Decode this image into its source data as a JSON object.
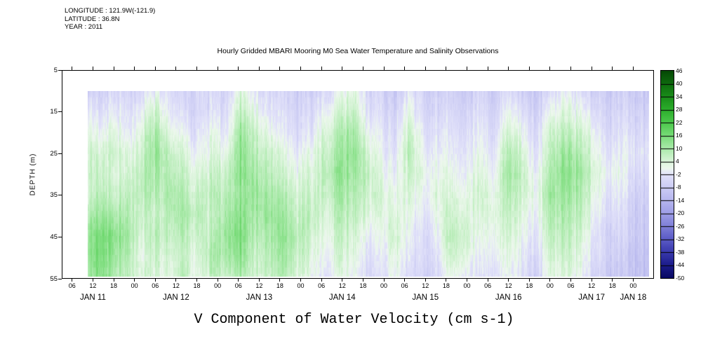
{
  "header": {
    "longitude": "LONGITUDE : 121.9W(-121.9)",
    "latitude": "LATITUDE : 36.8N",
    "year": "YEAR : 2011"
  },
  "title": "Hourly Gridded MBARI Mooring M0 Sea Water Temperature and Salinity Observations",
  "bottom_title": "V Component of Water Velocity (cm s-1)",
  "y_axis": {
    "label": "DEPTH (m)",
    "ticks": [
      5,
      15,
      25,
      35,
      45,
      55
    ],
    "range": [
      5,
      55
    ]
  },
  "x_axis": {
    "epoch": "2011-01-11 00:00",
    "hour_ticks": [
      {
        "hour": 6,
        "label": "06"
      },
      {
        "hour": 12,
        "label": "12"
      },
      {
        "hour": 18,
        "label": "18"
      },
      {
        "hour": 24,
        "label": "00"
      },
      {
        "hour": 30,
        "label": "06"
      },
      {
        "hour": 36,
        "label": "12"
      },
      {
        "hour": 42,
        "label": "18"
      },
      {
        "hour": 48,
        "label": "00"
      },
      {
        "hour": 54,
        "label": "06"
      },
      {
        "hour": 60,
        "label": "12"
      },
      {
        "hour": 66,
        "label": "18"
      },
      {
        "hour": 72,
        "label": "00"
      },
      {
        "hour": 78,
        "label": "06"
      },
      {
        "hour": 84,
        "label": "12"
      },
      {
        "hour": 90,
        "label": "18"
      },
      {
        "hour": 96,
        "label": "00"
      },
      {
        "hour": 102,
        "label": "06"
      },
      {
        "hour": 108,
        "label": "12"
      },
      {
        "hour": 114,
        "label": "18"
      },
      {
        "hour": 120,
        "label": "00"
      },
      {
        "hour": 126,
        "label": "06"
      },
      {
        "hour": 132,
        "label": "12"
      },
      {
        "hour": 138,
        "label": "18"
      },
      {
        "hour": 144,
        "label": "00"
      },
      {
        "hour": 150,
        "label": "06"
      },
      {
        "hour": 156,
        "label": "12"
      },
      {
        "hour": 162,
        "label": "18"
      },
      {
        "hour": 168,
        "label": "00"
      }
    ],
    "day_ticks": [
      {
        "hour": 12,
        "label": "JAN 11"
      },
      {
        "hour": 36,
        "label": "JAN 12"
      },
      {
        "hour": 60,
        "label": "JAN 13"
      },
      {
        "hour": 84,
        "label": "JAN 14"
      },
      {
        "hour": 108,
        "label": "JAN 15"
      },
      {
        "hour": 132,
        "label": "JAN 16"
      },
      {
        "hour": 156,
        "label": "JAN 17"
      },
      {
        "hour": 168,
        "label": "JAN 18"
      }
    ]
  },
  "chart_data": {
    "type": "heatmap",
    "title": "Hourly Gridded MBARI Mooring M0 Sea Water Temperature and Salinity Observations",
    "xlabel": "V Component of Water Velocity (cm s-1)",
    "ylabel": "DEPTH (m)",
    "units": "cm s-1",
    "value_range": [
      -50,
      46
    ],
    "x_range_hours": [
      3,
      174
    ],
    "data_x_range_hours": [
      10.5,
      172.5
    ],
    "depth_range": [
      5,
      55
    ],
    "grid_x_start_hour": 10,
    "grid_x_step_hour": 4.05,
    "depth_rows": [
      10,
      15,
      20,
      25,
      30,
      35,
      40,
      45,
      50,
      55
    ],
    "values": [
      [
        -4,
        -6,
        -4,
        -6,
        -4,
        0,
        -4,
        -6,
        -6,
        -4,
        -6,
        4,
        -2,
        -4,
        -6,
        -8,
        -6,
        -4,
        0,
        2,
        -4,
        -6,
        -8,
        -2,
        -6,
        -8,
        -6,
        -8,
        -6,
        -8,
        -4,
        -6,
        -8,
        -4,
        0,
        -2,
        -6,
        -8,
        -6,
        -8
      ],
      [
        2,
        -4,
        0,
        -4,
        0,
        6,
        -2,
        -4,
        -6,
        -2,
        -4,
        8,
        2,
        -2,
        -4,
        -6,
        -4,
        0,
        4,
        6,
        -2,
        -4,
        -6,
        2,
        -4,
        -6,
        -4,
        -6,
        -4,
        -6,
        0,
        -2,
        -6,
        0,
        4,
        2,
        -2,
        -6,
        -4,
        -6
      ],
      [
        6,
        0,
        4,
        -2,
        4,
        10,
        2,
        0,
        -4,
        2,
        -2,
        12,
        6,
        2,
        -2,
        -4,
        -2,
        4,
        8,
        10,
        2,
        -2,
        -4,
        6,
        -2,
        -4,
        -2,
        -4,
        -2,
        -4,
        4,
        2,
        -4,
        4,
        8,
        6,
        2,
        -4,
        -2,
        -4
      ],
      [
        8,
        4,
        6,
        2,
        6,
        12,
        6,
        4,
        -2,
        4,
        2,
        14,
        8,
        6,
        2,
        -2,
        2,
        6,
        10,
        12,
        6,
        0,
        -2,
        8,
        0,
        -2,
        0,
        -2,
        0,
        -2,
        8,
        6,
        -2,
        6,
        12,
        10,
        4,
        -2,
        0,
        -2
      ],
      [
        8,
        6,
        4,
        4,
        8,
        10,
        8,
        6,
        2,
        6,
        6,
        14,
        10,
        8,
        4,
        2,
        4,
        8,
        12,
        10,
        8,
        2,
        0,
        6,
        2,
        0,
        2,
        0,
        2,
        0,
        10,
        8,
        0,
        8,
        14,
        12,
        6,
        0,
        2,
        -4
      ],
      [
        6,
        8,
        6,
        6,
        8,
        8,
        10,
        8,
        4,
        8,
        8,
        12,
        12,
        10,
        8,
        4,
        6,
        6,
        10,
        8,
        6,
        4,
        2,
        4,
        0,
        2,
        4,
        2,
        4,
        2,
        8,
        6,
        2,
        10,
        12,
        10,
        4,
        -2,
        0,
        -6
      ],
      [
        10,
        12,
        10,
        8,
        6,
        6,
        8,
        10,
        6,
        6,
        10,
        14,
        10,
        12,
        10,
        6,
        8,
        4,
        8,
        6,
        4,
        2,
        4,
        2,
        -2,
        0,
        6,
        4,
        2,
        4,
        6,
        4,
        0,
        8,
        10,
        8,
        2,
        -4,
        -2,
        -8
      ],
      [
        14,
        16,
        14,
        10,
        4,
        8,
        6,
        8,
        4,
        8,
        12,
        16,
        8,
        10,
        12,
        8,
        6,
        2,
        6,
        4,
        0,
        0,
        6,
        0,
        -4,
        -2,
        8,
        6,
        0,
        2,
        4,
        2,
        -2,
        6,
        8,
        6,
        0,
        -6,
        -4,
        -8
      ],
      [
        14,
        16,
        12,
        8,
        2,
        6,
        4,
        6,
        2,
        10,
        10,
        14,
        6,
        8,
        10,
        6,
        4,
        0,
        4,
        2,
        -2,
        -2,
        4,
        -2,
        -4,
        -4,
        6,
        4,
        -2,
        0,
        2,
        0,
        -4,
        4,
        6,
        4,
        -2,
        -6,
        -6,
        -10
      ],
      [
        12,
        14,
        10,
        6,
        4,
        4,
        2,
        8,
        0,
        8,
        6,
        10,
        4,
        6,
        8,
        4,
        2,
        -2,
        2,
        0,
        -4,
        -4,
        2,
        -4,
        -6,
        -6,
        2,
        0,
        -4,
        -2,
        0,
        -2,
        -6,
        2,
        4,
        2,
        -4,
        -8,
        -8,
        -10
      ]
    ],
    "colorbar": {
      "ticks": [
        46,
        40,
        34,
        28,
        22,
        16,
        10,
        4,
        -2,
        -8,
        -14,
        -20,
        -26,
        -32,
        -38,
        -44,
        -50
      ],
      "orientation": "vertical",
      "position": "right"
    },
    "color_scale": [
      [
        -50,
        "#0a0a64"
      ],
      [
        -44,
        "#1d1d8c"
      ],
      [
        -38,
        "#3a3aae"
      ],
      [
        -32,
        "#5c5cc6"
      ],
      [
        -26,
        "#8080d8"
      ],
      [
        -20,
        "#9e9ee6"
      ],
      [
        -14,
        "#b6b6ee"
      ],
      [
        -8,
        "#ccccf4"
      ],
      [
        -2,
        "#e2e2fa"
      ],
      [
        1,
        "#eef8ee"
      ],
      [
        4,
        "#d9f4d9"
      ],
      [
        10,
        "#abeaab"
      ],
      [
        16,
        "#78dc78"
      ],
      [
        22,
        "#4cc84c"
      ],
      [
        28,
        "#2cae2c"
      ],
      [
        34,
        "#1a8e1a"
      ],
      [
        40,
        "#0e6c0e"
      ],
      [
        46,
        "#064806"
      ]
    ],
    "legend": "color scale at right, values in cm s-1",
    "grid": false
  }
}
